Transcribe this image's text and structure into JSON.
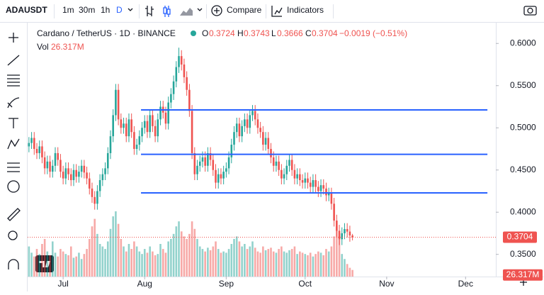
{
  "header": {
    "symbol": "ADAUSDT",
    "intervals": [
      "1m",
      "30m",
      "1h",
      "D"
    ],
    "compare": "Compare",
    "indicators": "Indicators"
  },
  "chart_data": {
    "type": "candlestick",
    "title": "Cardano / TetherUS · 1D · BINANCE",
    "ohlc_labels": [
      "O",
      "H",
      "L",
      "C"
    ],
    "change_label": "−0.0019 (−0.51%)",
    "volume_title": "Vol",
    "volume_value_label": "26.317M",
    "up_color": "#26a69a",
    "down_color": "#ef5350",
    "line_color": "#2962ff",
    "open": [
      0.478,
      0.482,
      0.488,
      0.475,
      0.47,
      0.478,
      0.465,
      0.452,
      0.46,
      0.448,
      0.455,
      0.47,
      0.462,
      0.448,
      0.44,
      0.452,
      0.445,
      0.438,
      0.45,
      0.442,
      0.448,
      0.455,
      0.447,
      0.44,
      0.428,
      0.418,
      0.41,
      0.425,
      0.438,
      0.445,
      0.452,
      0.47,
      0.49,
      0.515,
      0.545,
      0.51,
      0.5,
      0.505,
      0.49,
      0.51,
      0.495,
      0.475,
      0.48,
      0.49,
      0.5,
      0.508,
      0.495,
      0.515,
      0.502,
      0.49,
      0.51,
      0.525,
      0.518,
      0.505,
      0.53,
      0.54,
      0.555,
      0.572,
      0.585,
      0.575,
      0.56,
      0.545,
      0.52,
      0.47,
      0.445,
      0.455,
      0.46,
      0.465,
      0.455,
      0.47,
      0.462,
      0.45,
      0.435,
      0.445,
      0.44,
      0.448,
      0.452,
      0.465,
      0.48,
      0.495,
      0.505,
      0.49,
      0.502,
      0.51,
      0.5,
      0.515,
      0.52,
      0.51,
      0.5,
      0.495,
      0.48,
      0.488,
      0.475,
      0.465,
      0.455,
      0.46,
      0.45,
      0.44,
      0.445,
      0.455,
      0.462,
      0.45,
      0.44,
      0.445,
      0.438,
      0.435,
      0.44,
      0.435,
      0.43,
      0.438,
      0.43,
      0.425,
      0.432,
      0.428,
      0.42,
      0.422,
      0.41,
      0.39,
      0.378,
      0.368,
      0.375,
      0.38,
      0.377,
      0.3724
    ],
    "high": [
      0.489,
      0.495,
      0.495,
      0.482,
      0.485,
      0.485,
      0.472,
      0.467,
      0.467,
      0.462,
      0.477,
      0.477,
      0.469,
      0.455,
      0.459,
      0.459,
      0.452,
      0.457,
      0.457,
      0.455,
      0.462,
      0.462,
      0.454,
      0.447,
      0.435,
      0.425,
      0.432,
      0.445,
      0.452,
      0.459,
      0.477,
      0.497,
      0.522,
      0.552,
      0.552,
      0.517,
      0.512,
      0.512,
      0.517,
      0.517,
      0.502,
      0.487,
      0.497,
      0.507,
      0.515,
      0.515,
      0.522,
      0.522,
      0.509,
      0.517,
      0.532,
      0.532,
      0.525,
      0.537,
      0.547,
      0.562,
      0.579,
      0.595,
      0.592,
      0.582,
      0.567,
      0.552,
      0.527,
      0.477,
      0.462,
      0.467,
      0.472,
      0.472,
      0.477,
      0.477,
      0.469,
      0.457,
      0.452,
      0.452,
      0.455,
      0.459,
      0.472,
      0.487,
      0.502,
      0.512,
      0.512,
      0.509,
      0.517,
      0.517,
      0.522,
      0.527,
      0.527,
      0.517,
      0.507,
      0.502,
      0.495,
      0.495,
      0.482,
      0.472,
      0.467,
      0.467,
      0.457,
      0.452,
      0.462,
      0.469,
      0.469,
      0.457,
      0.452,
      0.452,
      0.445,
      0.447,
      0.447,
      0.442,
      0.445,
      0.445,
      0.437,
      0.439,
      0.439,
      0.435,
      0.429,
      0.429,
      0.417,
      0.397,
      0.385,
      0.382,
      0.387,
      0.387,
      0.384,
      0.3743
    ],
    "low": [
      0.471,
      0.475,
      0.468,
      0.463,
      0.463,
      0.458,
      0.445,
      0.445,
      0.441,
      0.441,
      0.448,
      0.455,
      0.441,
      0.433,
      0.433,
      0.438,
      0.431,
      0.431,
      0.435,
      0.435,
      0.441,
      0.44,
      0.433,
      0.421,
      0.411,
      0.403,
      0.403,
      0.418,
      0.431,
      0.438,
      0.445,
      0.463,
      0.483,
      0.508,
      0.503,
      0.493,
      0.493,
      0.483,
      0.483,
      0.488,
      0.468,
      0.468,
      0.473,
      0.483,
      0.493,
      0.488,
      0.488,
      0.495,
      0.483,
      0.483,
      0.503,
      0.511,
      0.498,
      0.498,
      0.523,
      0.533,
      0.548,
      0.565,
      0.568,
      0.553,
      0.538,
      0.513,
      0.463,
      0.438,
      0.438,
      0.448,
      0.453,
      0.448,
      0.448,
      0.455,
      0.443,
      0.428,
      0.428,
      0.433,
      0.433,
      0.441,
      0.445,
      0.458,
      0.473,
      0.488,
      0.483,
      0.483,
      0.495,
      0.493,
      0.493,
      0.508,
      0.503,
      0.493,
      0.488,
      0.473,
      0.473,
      0.468,
      0.458,
      0.448,
      0.448,
      0.443,
      0.433,
      0.433,
      0.438,
      0.448,
      0.443,
      0.433,
      0.433,
      0.431,
      0.428,
      0.428,
      0.428,
      0.423,
      0.423,
      0.423,
      0.418,
      0.418,
      0.421,
      0.413,
      0.413,
      0.403,
      0.383,
      0.371,
      0.361,
      0.361,
      0.368,
      0.37,
      0.365,
      0.3666
    ],
    "close": [
      0.482,
      0.488,
      0.475,
      0.47,
      0.478,
      0.465,
      0.452,
      0.46,
      0.448,
      0.455,
      0.47,
      0.462,
      0.448,
      0.44,
      0.452,
      0.445,
      0.438,
      0.45,
      0.442,
      0.448,
      0.455,
      0.447,
      0.44,
      0.428,
      0.418,
      0.41,
      0.425,
      0.438,
      0.445,
      0.452,
      0.47,
      0.49,
      0.515,
      0.545,
      0.51,
      0.5,
      0.505,
      0.49,
      0.51,
      0.495,
      0.475,
      0.48,
      0.49,
      0.5,
      0.508,
      0.495,
      0.515,
      0.502,
      0.49,
      0.51,
      0.525,
      0.518,
      0.505,
      0.53,
      0.54,
      0.555,
      0.572,
      0.585,
      0.575,
      0.56,
      0.545,
      0.52,
      0.47,
      0.445,
      0.455,
      0.46,
      0.465,
      0.455,
      0.47,
      0.462,
      0.45,
      0.435,
      0.445,
      0.44,
      0.448,
      0.452,
      0.465,
      0.48,
      0.495,
      0.505,
      0.49,
      0.502,
      0.51,
      0.5,
      0.515,
      0.52,
      0.51,
      0.5,
      0.495,
      0.48,
      0.488,
      0.475,
      0.465,
      0.455,
      0.46,
      0.45,
      0.44,
      0.445,
      0.455,
      0.462,
      0.45,
      0.44,
      0.445,
      0.438,
      0.435,
      0.44,
      0.435,
      0.43,
      0.438,
      0.43,
      0.425,
      0.432,
      0.428,
      0.42,
      0.422,
      0.41,
      0.39,
      0.378,
      0.368,
      0.375,
      0.38,
      0.377,
      0.3724,
      0.3704
    ],
    "volume": [
      120,
      95,
      80,
      110,
      90,
      130,
      150,
      100,
      85,
      140,
      95,
      80,
      110,
      100,
      90,
      85,
      120,
      75,
      80,
      95,
      70,
      90,
      110,
      150,
      200,
      230,
      170,
      130,
      120,
      110,
      140,
      190,
      240,
      260,
      210,
      150,
      120,
      100,
      130,
      110,
      140,
      120,
      100,
      90,
      110,
      95,
      120,
      100,
      85,
      90,
      130,
      110,
      95,
      140,
      150,
      170,
      200,
      220,
      180,
      160,
      150,
      170,
      220,
      190,
      150,
      120,
      110,
      100,
      115,
      105,
      120,
      140,
      110,
      95,
      100,
      95,
      110,
      130,
      150,
      160,
      140,
      120,
      130,
      110,
      120,
      140,
      115,
      100,
      95,
      120,
      105,
      110,
      115,
      100,
      95,
      110,
      120,
      100,
      95,
      105,
      110,
      120,
      90,
      100,
      95,
      90,
      85,
      95,
      80,
      90,
      100,
      95,
      85,
      110,
      100,
      120,
      160,
      200,
      150,
      90,
      70,
      50,
      35,
      26.317
    ],
    "ylim": [
      0.3237,
      0.6246
    ],
    "yticks": [
      {
        "value": 0.6,
        "label": "0.6000"
      },
      {
        "value": 0.55,
        "label": "0.5500"
      },
      {
        "value": 0.5,
        "label": "0.5000"
      },
      {
        "value": 0.45,
        "label": "0.4500"
      },
      {
        "value": 0.4,
        "label": "0.4000"
      },
      {
        "value": 0.35,
        "label": "0.3500"
      }
    ],
    "xlim": [
      -0.5,
      177.5
    ],
    "xticks": [
      {
        "value": 13,
        "label": "Jul"
      },
      {
        "value": 44,
        "label": "Aug"
      },
      {
        "value": 75,
        "label": "Sep"
      },
      {
        "value": 105,
        "label": "Oct"
      },
      {
        "value": 136,
        "label": "Nov"
      },
      {
        "value": 166,
        "label": "Dec"
      }
    ],
    "hlines": [
      {
        "value": 0.5212,
        "from": 42.6,
        "to": 174.3
      },
      {
        "value": 0.4686,
        "from": 42.6,
        "to": 174.3
      },
      {
        "value": 0.4229,
        "from": 42.6,
        "to": 174.3
      }
    ]
  }
}
